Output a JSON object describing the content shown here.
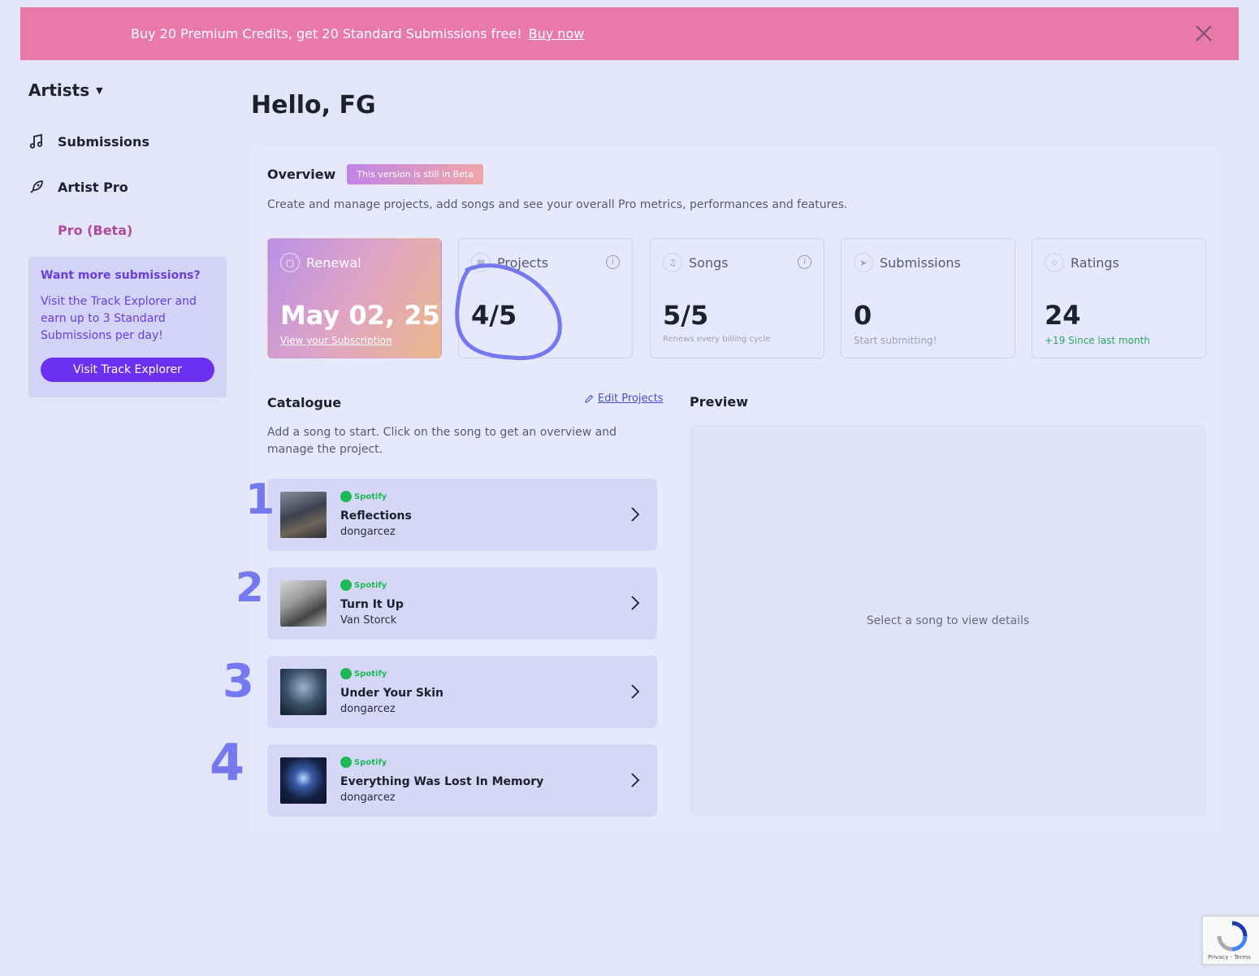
{
  "banner": {
    "text": "Buy 20 Premium Credits, get 20 Standard Submissions free!",
    "link": "Buy now"
  },
  "sidebar": {
    "switcher": "Artists",
    "items": [
      {
        "label": "Submissions",
        "icon": "music-note-icon"
      },
      {
        "label": "Artist Pro",
        "icon": "rocket-icon"
      }
    ],
    "sub_item": "Pro (Beta)",
    "promo": {
      "title": "Want more submissions?",
      "body": "Visit the Track Explorer and earn up to 3 Standard Submissions per day!",
      "button": "Visit Track Explorer"
    }
  },
  "greeting": "Hello, FG",
  "overview": {
    "title": "Overview",
    "badge": "This version is still in Beta",
    "description": "Create and manage projects, add songs and see your overall Pro metrics, performances and features.",
    "stats": [
      {
        "label": "Renewal",
        "value": "May 02, 25",
        "sub": "View your Subscription",
        "icon": "calendar-icon"
      },
      {
        "label": "Projects",
        "value": "4/5",
        "sub": "",
        "icon": "grid-icon"
      },
      {
        "label": "Songs",
        "value": "5/5",
        "sub": "Renews every billing cycle",
        "icon": "music-note-icon"
      },
      {
        "label": "Submissions",
        "value": "0",
        "sub": "Start submitting!",
        "icon": "send-icon"
      },
      {
        "label": "Ratings",
        "value": "24",
        "sub": "+19 Since last month",
        "icon": "star-icon"
      }
    ]
  },
  "catalogue": {
    "title": "Catalogue",
    "edit_link": "Edit Projects",
    "description": "Add a song to start. Click on the song to get an overview and manage the project.",
    "platform": "Spotify",
    "songs": [
      {
        "title": "Reflections",
        "artist": "dongarcez"
      },
      {
        "title": "Turn It Up",
        "artist": "Van Storck"
      },
      {
        "title": "Under Your Skin",
        "artist": "dongarcez"
      },
      {
        "title": "Everything Was Lost In Memory",
        "artist": "dongarcez"
      }
    ]
  },
  "preview": {
    "title": "Preview",
    "empty": "Select a song to view details"
  },
  "annotations": [
    "1",
    "2",
    "3",
    "4"
  ],
  "recaptcha": "Privacy - Terms",
  "colors": {
    "banner": "#e879aa",
    "accent": "#6b2ff0",
    "annotation": "#7479ef",
    "spotify": "#1db954"
  }
}
